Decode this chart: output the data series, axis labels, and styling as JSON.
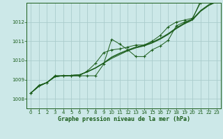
{
  "xlabel": "Graphe pression niveau de la mer (hPa)",
  "bg_color": "#cce8e8",
  "grid_color": "#aacccc",
  "line_color": "#1a5c1a",
  "xlim": [
    -0.5,
    23.5
  ],
  "ylim": [
    1007.5,
    1013.0
  ],
  "yticks": [
    1008,
    1009,
    1010,
    1011,
    1012
  ],
  "xticks": [
    0,
    1,
    2,
    3,
    4,
    5,
    6,
    7,
    8,
    9,
    10,
    11,
    12,
    13,
    14,
    15,
    16,
    17,
    18,
    19,
    20,
    21,
    22,
    23
  ],
  "hours": [
    0,
    1,
    2,
    3,
    4,
    5,
    6,
    7,
    8,
    9,
    10,
    11,
    12,
    13,
    14,
    15,
    16,
    17,
    18,
    19,
    20,
    21,
    22,
    23
  ],
  "line_smooth1": [
    1008.3,
    1008.65,
    1008.85,
    1009.15,
    1009.2,
    1009.22,
    1009.25,
    1009.4,
    1009.6,
    1009.85,
    1010.1,
    1010.3,
    1010.5,
    1010.65,
    1010.75,
    1010.9,
    1011.1,
    1011.35,
    1011.65,
    1011.9,
    1012.1,
    1012.55,
    1012.85,
    1013.05
  ],
  "line_smooth2": [
    1008.3,
    1008.65,
    1008.85,
    1009.15,
    1009.2,
    1009.22,
    1009.25,
    1009.4,
    1009.6,
    1009.85,
    1010.15,
    1010.35,
    1010.52,
    1010.67,
    1010.77,
    1010.92,
    1011.12,
    1011.37,
    1011.67,
    1011.92,
    1012.12,
    1012.58,
    1012.88,
    1013.08
  ],
  "line_smooth3": [
    1008.3,
    1008.65,
    1008.85,
    1009.15,
    1009.2,
    1009.22,
    1009.25,
    1009.42,
    1009.62,
    1009.87,
    1010.18,
    1010.38,
    1010.55,
    1010.7,
    1010.8,
    1010.95,
    1011.15,
    1011.4,
    1011.7,
    1011.95,
    1012.15,
    1012.6,
    1012.9,
    1013.1
  ],
  "line_marker": [
    1008.3,
    1008.7,
    1008.85,
    1009.2,
    1009.2,
    1009.2,
    1009.2,
    1009.2,
    1009.2,
    1009.8,
    1011.1,
    1010.85,
    1010.55,
    1010.2,
    1010.2,
    1010.55,
    1010.75,
    1011.05,
    1011.8,
    1012.0,
    1012.15,
    1013.1,
    1013.2,
    1013.2
  ],
  "line_marker2": [
    1008.3,
    1008.7,
    1008.85,
    1009.2,
    1009.2,
    1009.2,
    1009.2,
    1009.45,
    1009.85,
    1010.4,
    1010.55,
    1010.6,
    1010.7,
    1010.8,
    1010.8,
    1011.0,
    1011.3,
    1011.75,
    1012.0,
    1012.1,
    1012.2,
    1013.0,
    1013.15,
    1013.2
  ]
}
